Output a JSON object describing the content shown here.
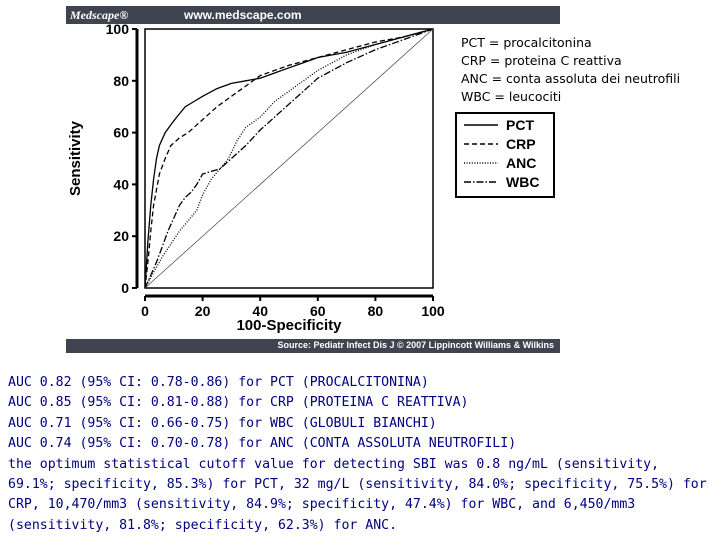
{
  "figure": {
    "brand": "Medscape®",
    "site": "www.medscape.com",
    "source": "Source: Pediatr Infect Dis J © 2007 Lippincott Williams & Wilkins"
  },
  "chart_data": {
    "type": "line",
    "xlabel": "100-Specificity",
    "ylabel": "Sensitivity",
    "xlim": [
      0,
      100
    ],
    "ylim": [
      0,
      100
    ],
    "xticks": [
      "0",
      "20",
      "40",
      "60",
      "80",
      "100"
    ],
    "yticks": [
      "0",
      "20",
      "40",
      "60",
      "80",
      "100"
    ],
    "legend_position": "right",
    "series": [
      {
        "name": "PCT",
        "style": "solid",
        "x": [
          0,
          1,
          2,
          3,
          4,
          5,
          7,
          9,
          11,
          14,
          17,
          20,
          25,
          30,
          35,
          40,
          45,
          50,
          55,
          60,
          70,
          80,
          90,
          100
        ],
        "y": [
          0,
          18,
          32,
          42,
          50,
          55,
          60,
          63,
          66,
          70,
          72,
          74,
          77,
          79,
          80,
          81,
          83,
          85,
          87,
          89,
          91,
          94,
          97,
          100
        ]
      },
      {
        "name": "CRP",
        "style": "dashed",
        "x": [
          0,
          1,
          2,
          3,
          4,
          5,
          7,
          9,
          12,
          15,
          18,
          21,
          25,
          30,
          35,
          40,
          45,
          50,
          60,
          70,
          80,
          90,
          100
        ],
        "y": [
          0,
          10,
          22,
          32,
          38,
          44,
          50,
          55,
          58,
          60,
          63,
          66,
          70,
          74,
          78,
          82,
          84,
          86,
          89,
          92,
          95,
          97,
          100
        ]
      },
      {
        "name": "ANC",
        "style": "dotted",
        "x": [
          0,
          3,
          6,
          9,
          12,
          15,
          18,
          20,
          23,
          26,
          29,
          32,
          35,
          40,
          45,
          50,
          55,
          60,
          65,
          70,
          80,
          90,
          100
        ],
        "y": [
          0,
          6,
          12,
          17,
          22,
          26,
          30,
          36,
          42,
          46,
          50,
          57,
          62,
          66,
          72,
          76,
          80,
          84,
          87,
          90,
          94,
          97,
          100
        ]
      },
      {
        "name": "WBC",
        "style": "dashdot",
        "x": [
          0,
          2,
          4,
          6,
          8,
          10,
          12,
          14,
          16,
          18,
          20,
          23,
          26,
          30,
          35,
          40,
          45,
          50,
          55,
          60,
          70,
          80,
          90,
          100
        ],
        "y": [
          0,
          5,
          10,
          16,
          22,
          27,
          32,
          35,
          37,
          40,
          44,
          45,
          46,
          50,
          55,
          61,
          66,
          71,
          76,
          81,
          87,
          92,
          96,
          100
        ]
      },
      {
        "name": "Reference",
        "style": "thin",
        "x": [
          0,
          100
        ],
        "y": [
          0,
          100
        ]
      }
    ]
  },
  "definitions": [
    "PCT = procalcitonina",
    "CRP = proteina C reattiva",
    "ANC = conta assoluta dei neutrofili",
    "WBC = leucociti"
  ],
  "notes": [
    "AUC 0.82 (95% CI: 0.78-0.86) for PCT (PROCALCITONINA)",
    "AUC 0.85 (95% CI: 0.81-0.88) for CRP (PROTEINA C REATTIVA)",
    "AUC 0.71 (95% CI: 0.66-0.75) for WBC (GLOBULI BIANCHI)",
    "AUC 0.74 (95% CI: 0.70-0.78) for ANC (CONTA ASSOLUTA NEUTROFILI)",
    "the optimum statistical cutoff value for detecting SBI was 0.8 ng/mL (sensitivity, 69.1%; specificity, 85.3%) for PCT, 32 mg/L (sensitivity, 84.0%; specificity, 75.5%) for CRP, 10,470/mm3 (sensitivity, 84.9%; specificity, 47.4%) for WBC, and 6,450/mm3 (sensitivity, 81.8%; specificity, 62.3%) for ANC."
  ]
}
